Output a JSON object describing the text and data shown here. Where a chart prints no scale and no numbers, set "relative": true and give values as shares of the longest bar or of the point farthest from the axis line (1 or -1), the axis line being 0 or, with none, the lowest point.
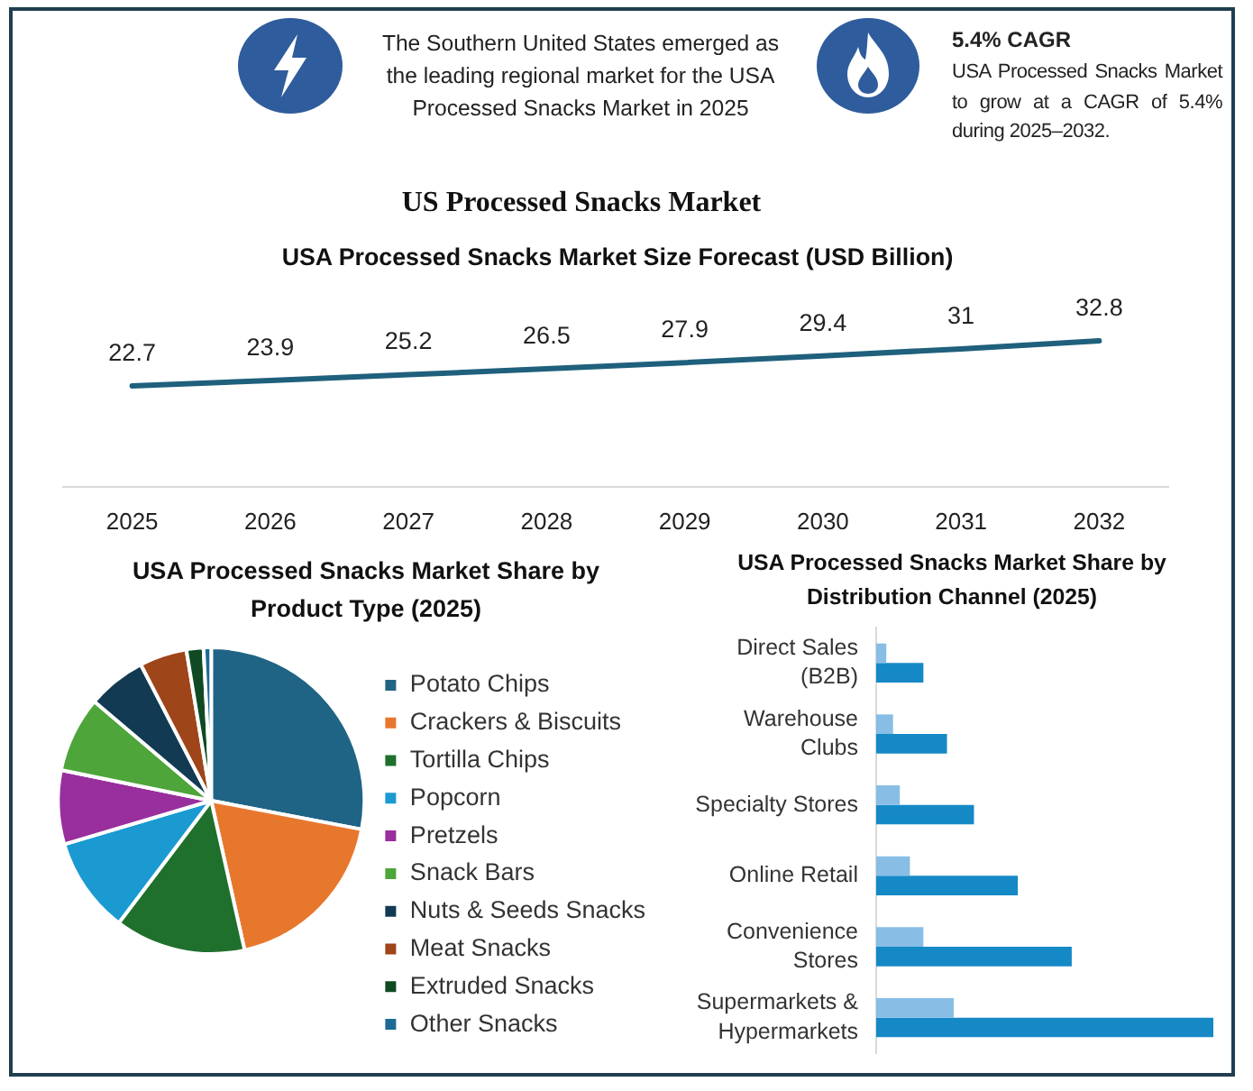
{
  "chart_data": [
    {
      "type": "other",
      "title": "US Processed Snacks Market",
      "annotations": [
        "The Southern United States emerged as the leading regional market for the USA Processed Snacks Market in 2025",
        "5.4% CAGR",
        "USA Processed Snacks Market to grow at a CAGR of 5.4% during 2025–2032."
      ]
    },
    {
      "type": "line",
      "title": "USA Processed Snacks Market Size Forecast (USD Billion)",
      "categories": [
        "2025",
        "2026",
        "2027",
        "2028",
        "2029",
        "2030",
        "2031",
        "2032"
      ],
      "values": [
        22.7,
        23.9,
        25.2,
        26.5,
        27.9,
        29.4,
        31,
        32.8
      ],
      "color": "#1f607c",
      "tick_labels": "x",
      "data_labels": true
    },
    {
      "type": "pie",
      "title": "USA Processed Snacks Market Share by Product Type (2025)",
      "categories": [
        "Potato Chips",
        "Crackers & Biscuits",
        "Tortilla Chips",
        "Popcorn",
        "Pretzels",
        "Snack Bars",
        "Nuts & Seeds Snacks",
        "Meat Snacks",
        "Extruded Snacks",
        "Other Snacks"
      ],
      "values": [
        28,
        18.5,
        13.8,
        10.1,
        7.8,
        8,
        6.2,
        5,
        1.8,
        0.8
      ],
      "colors": [
        "#1f6485",
        "#e8772e",
        "#1f6f2d",
        "#1b9ad2",
        "#982f9d",
        "#4ea53a",
        "#123a52",
        "#9e4519",
        "#0f4a22",
        "#1d6a94"
      ],
      "legend": "right"
    },
    {
      "type": "bar",
      "orientation": "horizontal",
      "relative": true,
      "title": "USA Processed Snacks Market Share by Distribution Channel (2025)",
      "categories": [
        "Direct Sales (B2B)",
        "Warehouse Clubs",
        "Specialty Stores",
        "Online Retail",
        "Convenience Stores",
        "Supermarkets & Hypermarkets"
      ],
      "series": [
        {
          "color": "#88bee6",
          "values": [
            0.03,
            0.05,
            0.07,
            0.1,
            0.14,
            0.23
          ]
        },
        {
          "color": "#1589c6",
          "values": [
            0.14,
            0.21,
            0.29,
            0.42,
            0.58,
            1
          ]
        }
      ]
    }
  ]
}
